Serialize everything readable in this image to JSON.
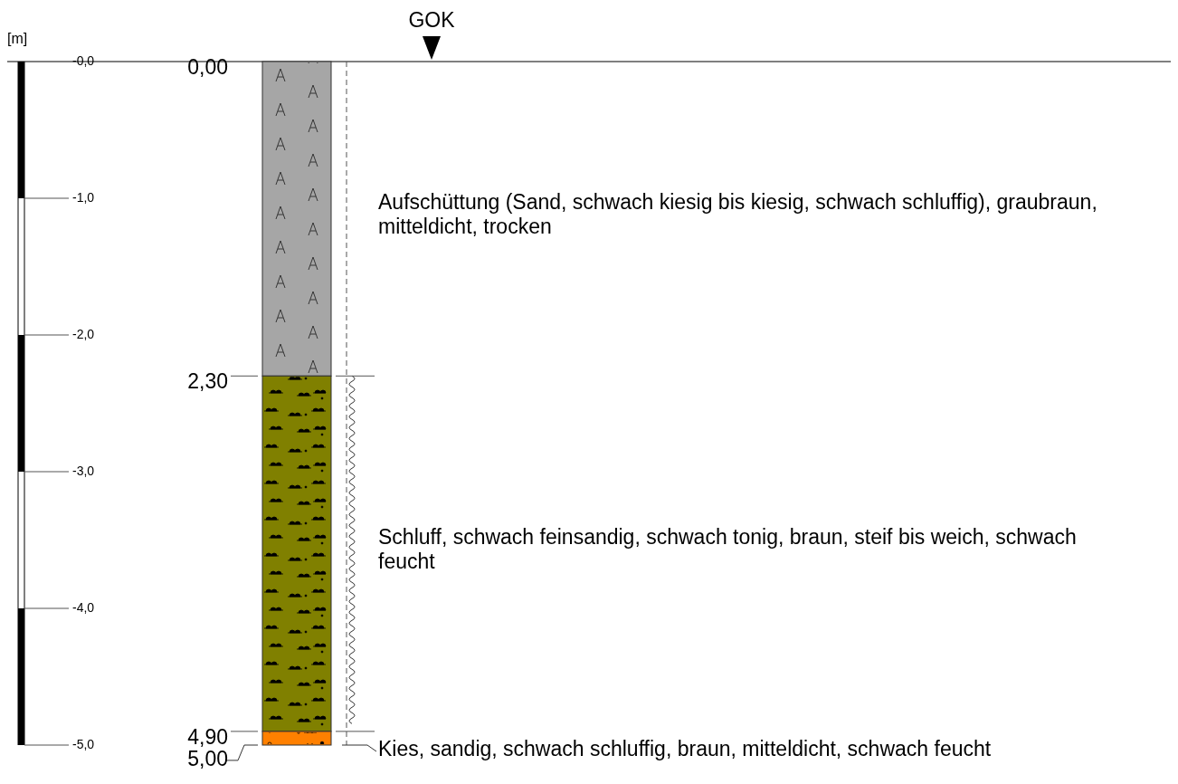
{
  "chart_data": {
    "type": "bar",
    "stacked": true,
    "ylabel": "[m]",
    "categories": [
      null
    ],
    "series": [
      {
        "name": "Aufschüttung (Sand, schwach kiesig bis kiesig, schwach schluffig), graubraun, mitteldicht, trocken",
        "color": "#a6a6a6",
        "values": [
          -2.3
        ]
      },
      {
        "name": "Schluff, schwach feinsandig, schwach tonig, braun, steif bis weich, schwach feucht",
        "color": "#808000",
        "values": [
          -2.6
        ]
      },
      {
        "name": "Kies, sandig, schwach schluffig, braun, mitteldicht, schwach feucht",
        "color": "#ff8000",
        "values": [
          -0.1
        ]
      }
    ],
    "ylim": [
      -5,
      0
    ],
    "yticks": [
      {
        "value": 0,
        "label": "-0,0"
      },
      {
        "value": -1,
        "label": "-1,0"
      },
      {
        "value": -2,
        "label": "-2,0"
      },
      {
        "value": -3,
        "label": "-3,0"
      },
      {
        "value": -4,
        "label": "-4,0"
      },
      {
        "value": -5,
        "label": "-5,0"
      }
    ],
    "ref_lines": [
      {
        "axis": "y",
        "value": 0,
        "label": "GOK"
      }
    ],
    "annotations": [
      "0,00",
      "2,30",
      "4,90",
      "5,00"
    ]
  }
}
